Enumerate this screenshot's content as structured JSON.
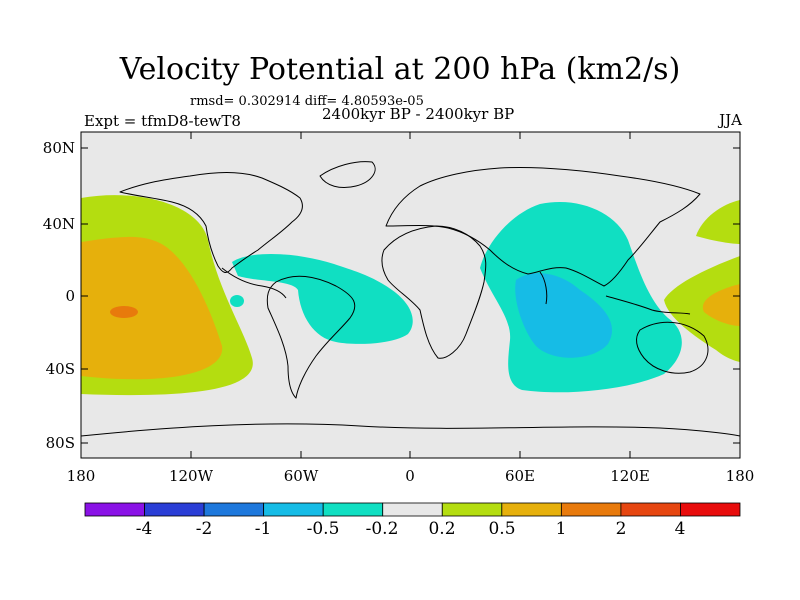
{
  "title": "Velocity Potential at 200 hPa (km2/s)",
  "stats": "rmsd= 0.302914 diff= 4.80593e-05",
  "experiment": "Expt = tfmD8-tewT8",
  "period": "2400kyr BP - 2400kyr BP",
  "season": "JJA",
  "lat_labels": [
    "80N",
    "40N",
    "0",
    "40S",
    "80S"
  ],
  "lon_labels": [
    "180",
    "120W",
    "60W",
    "0",
    "60E",
    "120E",
    "180"
  ],
  "colorbar": {
    "labels": [
      "-4",
      "-2",
      "-1",
      "-0.5",
      "-0.2",
      "0.2",
      "0.5",
      "1",
      "2",
      "4"
    ],
    "colors": [
      "#8a12e6",
      "#2a3ed6",
      "#1e78dc",
      "#16bce6",
      "#10dfc2",
      "#e8e8e8",
      "#b4dd10",
      "#e6b00c",
      "#e87a0c",
      "#e64610",
      "#e80c0c"
    ]
  },
  "ocean_color": "#e8e8e8"
}
